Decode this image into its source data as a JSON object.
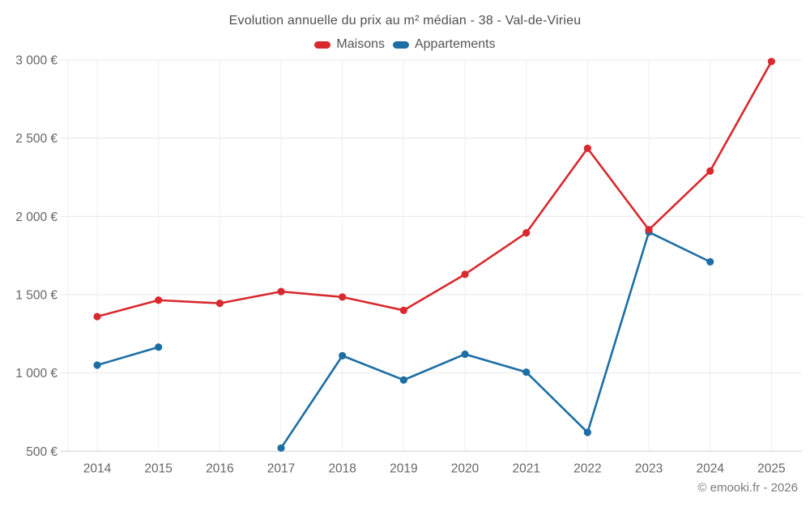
{
  "page": {
    "background": "#ffffff"
  },
  "header": {
    "title": "Evolution annuelle du prix au m² médian - 38 - Val-de-Virieu"
  },
  "legend": {
    "items": [
      {
        "label": "Maisons",
        "color": "#d8292e"
      },
      {
        "label": "Appartements",
        "color": "#1c6ea4"
      }
    ]
  },
  "watermark": "© emooki.fr - 2026",
  "chart_data": {
    "type": "line",
    "title": "Evolution annuelle du prix au m² médian - 38 - Val-de-Virieu",
    "categories": [
      "2014",
      "2015",
      "2016",
      "2017",
      "2018",
      "2019",
      "2020",
      "2021",
      "2022",
      "2023",
      "2024",
      "2025"
    ],
    "series": [
      {
        "name": "Maisons",
        "color": "#d8292e",
        "values": [
          1360,
          1465,
          1445,
          1520,
          1485,
          1400,
          1630,
          1895,
          2435,
          1915,
          2290,
          2990
        ]
      },
      {
        "name": "Appartements",
        "color": "#1c6ea4",
        "values": [
          1050,
          1165,
          null,
          520,
          1110,
          955,
          1120,
          1005,
          620,
          1900,
          1710,
          null
        ]
      }
    ],
    "ylim": [
      500,
      3000
    ],
    "yticks": [
      500,
      1000,
      1500,
      2000,
      2500,
      3000
    ],
    "ytick_labels": [
      "500 €",
      "1 000 €",
      "1 500 €",
      "2 000 €",
      "2 500 €",
      "3 000 €"
    ],
    "currency_suffix": "€",
    "grid": true,
    "legend_position": "top",
    "marker": "circle"
  }
}
